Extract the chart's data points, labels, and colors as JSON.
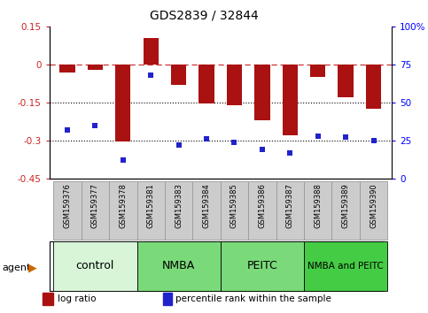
{
  "title": "GDS2839 / 32844",
  "samples": [
    "GSM159376",
    "GSM159377",
    "GSM159378",
    "GSM159381",
    "GSM159383",
    "GSM159384",
    "GSM159385",
    "GSM159386",
    "GSM159387",
    "GSM159388",
    "GSM159389",
    "GSM159390"
  ],
  "log_ratio": [
    -0.03,
    -0.02,
    -0.305,
    0.105,
    -0.08,
    -0.155,
    -0.16,
    -0.22,
    -0.28,
    -0.05,
    -0.13,
    -0.175
  ],
  "percentile_rank": [
    32,
    35,
    12,
    68,
    22,
    26,
    24,
    19,
    17,
    28,
    27,
    25
  ],
  "group_labels": [
    "control",
    "NMBA",
    "PEITC",
    "NMBA and PEITC"
  ],
  "group_ranges": [
    [
      0,
      3
    ],
    [
      3,
      6
    ],
    [
      6,
      9
    ],
    [
      9,
      12
    ]
  ],
  "group_colors": [
    "#d8f5d8",
    "#7ada7a",
    "#7ada7a",
    "#44cc44"
  ],
  "group_fontsizes": [
    9,
    9,
    9,
    7.5
  ],
  "ylim_left": [
    -0.45,
    0.15
  ],
  "ylim_right": [
    0,
    100
  ],
  "yticks_left": [
    -0.45,
    -0.3,
    -0.15,
    0,
    0.15
  ],
  "ytick_labels_left": [
    "-0.45",
    "-0.3",
    "-0.15",
    "0",
    "0.15"
  ],
  "yticks_right": [
    0,
    25,
    50,
    75,
    100
  ],
  "ytick_labels_right": [
    "0",
    "25",
    "50",
    "75",
    "100%"
  ],
  "bar_color": "#aa1111",
  "dot_color": "#2222cc",
  "zero_line_color": "#cc3333",
  "hline_color": "#000000",
  "label_bg_color": "#cccccc",
  "label_edge_color": "#999999"
}
